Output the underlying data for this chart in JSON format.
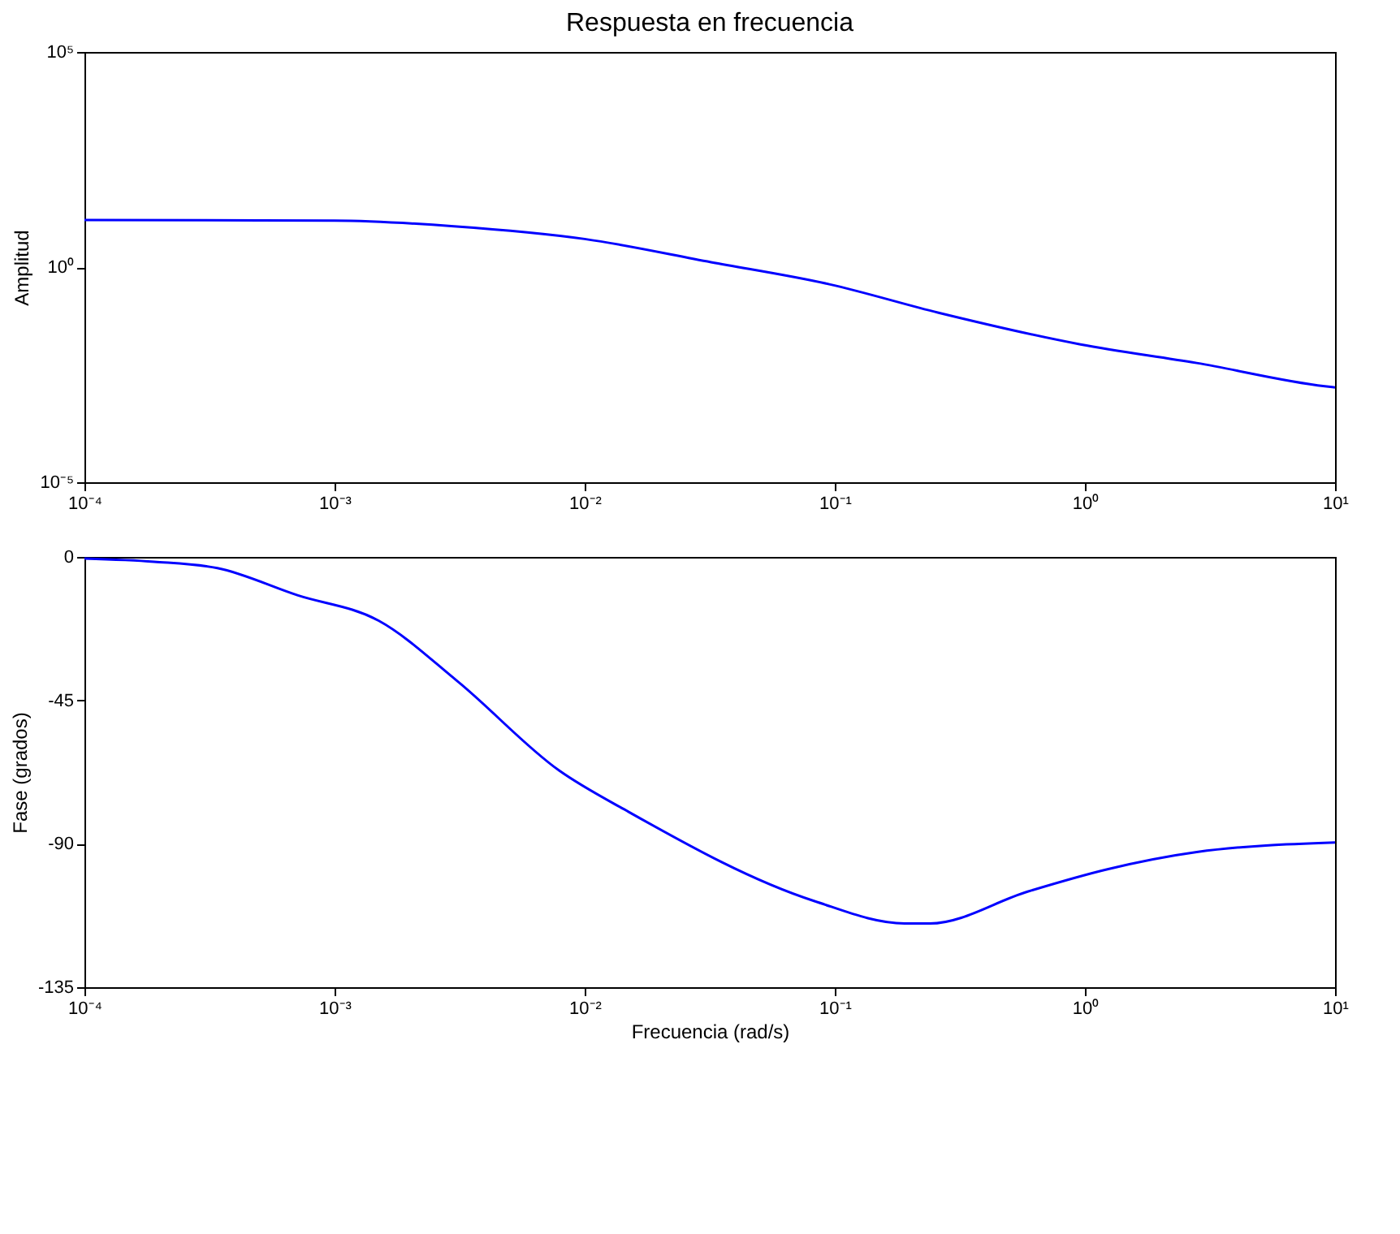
{
  "chart_data": [
    {
      "type": "line",
      "title": "Respuesta en frecuencia",
      "ylabel": "Amplitud",
      "log": "xy",
      "grid": false,
      "line_style": "solid",
      "marker": "none",
      "series": [
        {
          "color": "#0000ff",
          "x": [
            0.0001,
            0.001,
            0.003,
            0.01,
            0.032,
            0.095,
            0.26,
            0.96,
            2.8,
            9.1,
            10
          ],
          "values": [
            12.4,
            12,
            8.9,
            4.5,
            1.3,
            0.4,
            0.087,
            0.016,
            0.0059,
            0.0017,
            0.0016
          ]
        }
      ],
      "xlim": [
        0.0001,
        10
      ],
      "ylim": [
        1e-05,
        100000
      ],
      "xticks": [
        {
          "value": 0.0001,
          "label": "10⁻⁴"
        },
        {
          "value": 0.001,
          "label": "10⁻³"
        },
        {
          "value": 0.01,
          "label": "10⁻²"
        },
        {
          "value": 0.1,
          "label": "10⁻¹"
        },
        {
          "value": 1,
          "label": "10⁰"
        },
        {
          "value": 10,
          "label": "10¹"
        }
      ],
      "yticks": [
        {
          "value": 1e-05,
          "label": "10⁻⁵"
        },
        {
          "value": 1,
          "label": "10⁰"
        },
        {
          "value": 100000,
          "label": "10⁵"
        }
      ]
    },
    {
      "type": "line",
      "xlabel": "Frecuencia (rad/s)",
      "ylabel": "Fase (grados)",
      "log": "x",
      "grid": false,
      "line_style": "solid",
      "marker": "none",
      "series": [
        {
          "color": "#0000ff",
          "x": [
            0.0001,
            0.00019,
            0.00034,
            0.00071,
            0.0015,
            0.0031,
            0.0079,
            0.015,
            0.083,
            0.19,
            0.24,
            0.59,
            1.23,
            2.8,
            10
          ],
          "values": [
            -0.5,
            -1.5,
            -3.5,
            -12,
            -20,
            -39,
            -67,
            -80,
            -108,
            -115,
            -115,
            -105,
            -98,
            -92.6,
            -89.6
          ]
        }
      ],
      "xlim": [
        0.0001,
        10
      ],
      "ylim": [
        -135,
        0
      ],
      "xticks": [
        {
          "value": 0.0001,
          "label": "10⁻⁴"
        },
        {
          "value": 0.001,
          "label": "10⁻³"
        },
        {
          "value": 0.01,
          "label": "10⁻²"
        },
        {
          "value": 0.1,
          "label": "10⁻¹"
        },
        {
          "value": 1,
          "label": "10⁰"
        },
        {
          "value": 10,
          "label": "10¹"
        }
      ],
      "yticks": [
        0,
        -45,
        -90,
        -135
      ]
    }
  ]
}
